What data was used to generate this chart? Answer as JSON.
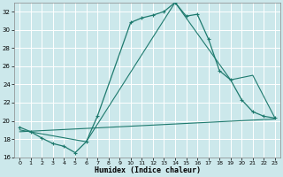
{
  "background_color": "#cce8eb",
  "grid_color": "#b0d8dc",
  "line_color": "#1e7a6e",
  "xlabel": "Humidex (Indice chaleur)",
  "xlim": [
    -0.5,
    23.5
  ],
  "ylim": [
    16,
    33
  ],
  "yticks": [
    16,
    18,
    20,
    22,
    24,
    26,
    28,
    30,
    32
  ],
  "xticks": [
    0,
    1,
    2,
    3,
    4,
    5,
    6,
    7,
    8,
    9,
    10,
    11,
    12,
    13,
    14,
    15,
    16,
    17,
    18,
    19,
    20,
    21,
    22,
    23
  ],
  "curve1_x": [
    0,
    1,
    2,
    3,
    4,
    5,
    6,
    7,
    10,
    11,
    12,
    13,
    14,
    15,
    16,
    17,
    18,
    19,
    20,
    21,
    22,
    23
  ],
  "curve1_y": [
    19.3,
    18.8,
    18.1,
    17.5,
    17.2,
    16.5,
    17.7,
    20.5,
    30.8,
    31.3,
    31.6,
    32.0,
    33.0,
    31.5,
    31.7,
    29.0,
    25.5,
    24.5,
    22.3,
    21.0,
    20.5,
    20.3
  ],
  "curve2_x": [
    0,
    6,
    14,
    19,
    21,
    23
  ],
  "curve2_y": [
    19.0,
    17.7,
    33.0,
    24.5,
    25.0,
    20.3
  ],
  "curve3_x": [
    0,
    23
  ],
  "curve3_y": [
    18.8,
    20.2
  ]
}
